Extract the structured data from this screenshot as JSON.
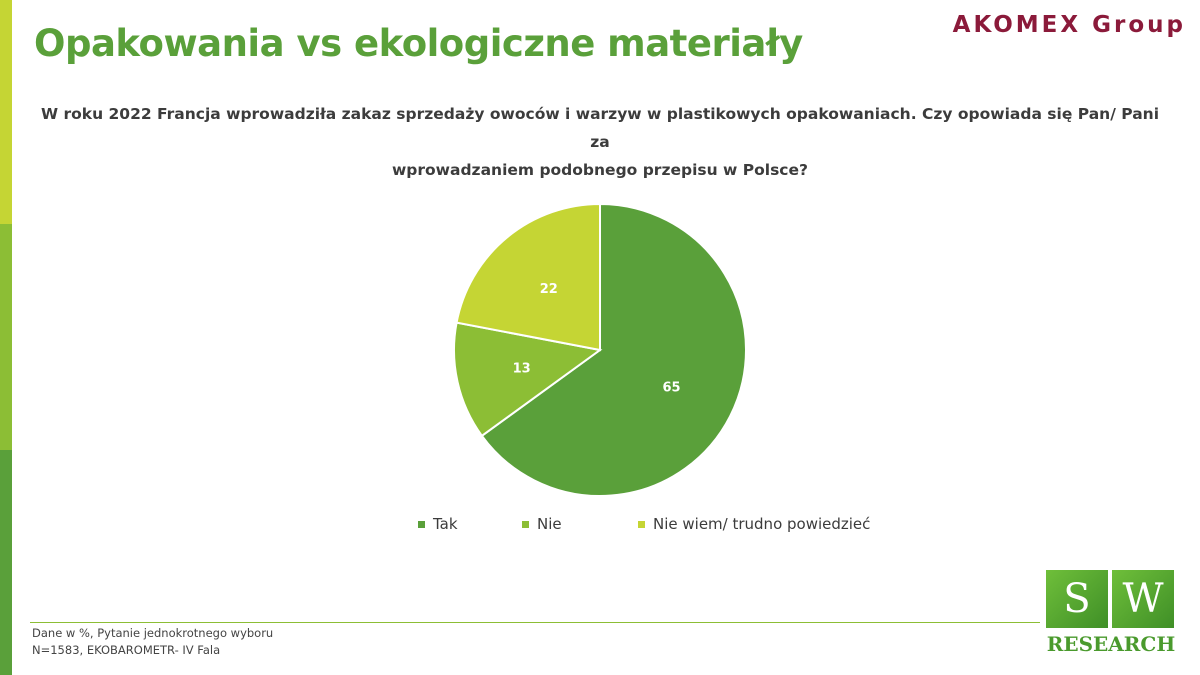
{
  "brand": "AKOMEX Group",
  "title": "Opakowania vs ekologiczne materiały",
  "question_line1": "W roku 2022 Francja wprowadziła zakaz sprzedaży owoców i warzyw w plastikowych opakowaniach. Czy opowiada się Pan/ Pani za",
  "question_line2": "wprowadzaniem podobnego przepisu w Polsce?",
  "chart_data": {
    "type": "pie",
    "categories": [
      "Tak",
      "Nie",
      "Nie wiem/ trudno powiedzieć"
    ],
    "values": [
      65,
      13,
      22
    ],
    "colors": [
      "#5aa03a",
      "#8cbe35",
      "#c5d534"
    ],
    "legend_position": "bottom"
  },
  "footnote_line1": "Dane w %, Pytanie jednokrotnego wyboru",
  "footnote_line2": "N=1583, EKOBAROMETR- IV Fala",
  "logo": {
    "letter1": "S",
    "letter2": "W",
    "text": "RESEARCH"
  },
  "colors": {
    "accent": "#5aa03a",
    "brand": "#8b1a3a"
  }
}
